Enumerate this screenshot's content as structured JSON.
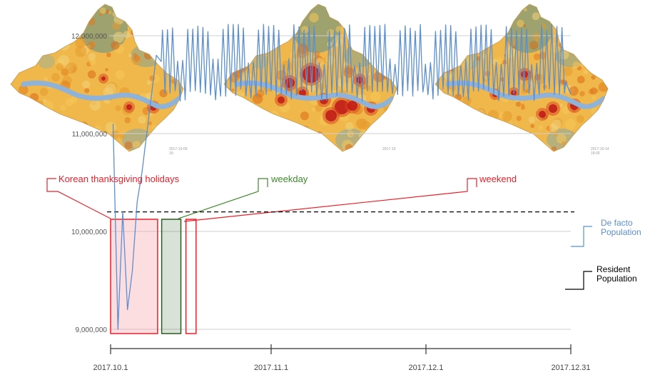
{
  "maps": [
    {
      "timestamp": "2017-10-06 16:"
    },
    {
      "timestamp": "2017-10"
    },
    {
      "timestamp": "2017-10-14 18:00"
    }
  ],
  "annotations": {
    "holiday": "Korean thanksgiving holidays",
    "weekday": "weekday",
    "weekend": "weekend"
  },
  "legend": {
    "defacto": [
      "De facto",
      "Population"
    ],
    "resident": [
      "Resident",
      "Population"
    ]
  },
  "colors": {
    "series": "#5b8fd0",
    "holiday": "#e8202a",
    "weekday": "#3e8a2c",
    "weekend": "#e8202a",
    "grid": "#cfcfcf"
  },
  "chart_data": {
    "type": "line",
    "xlabel": "",
    "ylabel": "",
    "x_ticks": [
      "2017.10.1",
      "2017.11.1",
      "2017.12.1",
      "2017.12.31"
    ],
    "y_ticks": [
      "9,000,000",
      "10,000,000",
      "11,000,000",
      "12,000,000"
    ],
    "ylim": [
      8800000,
      12300000
    ],
    "grid": true,
    "series": [
      {
        "name": "De facto Population",
        "x": [
          "2017.10.1",
          "2017.10.2",
          "2017.10.3",
          "2017.10.4",
          "2017.10.5",
          "2017.10.6",
          "2017.10.7",
          "2017.10.8",
          "2017.10.9",
          "2017.10.10",
          "2017.12.31"
        ],
        "values": [
          11100000,
          9000000,
          10200000,
          9200000,
          9600000,
          10300000,
          10600000,
          11000000,
          11400000,
          11800000,
          11400000
        ],
        "pattern": "daily oscillation between about 11,400,000 and 12,100,000 from 2017.10.10 to 2017.12.31"
      },
      {
        "name": "Resident Population",
        "values": [
          10200000
        ],
        "style": "dashed"
      }
    ],
    "highlights": [
      {
        "label": "Korean thanksgiving holidays",
        "from": "2017.10.1",
        "to": "2017.10.10"
      },
      {
        "label": "weekday",
        "from": "2017.10.11",
        "to": "2017.10.13"
      },
      {
        "label": "weekend",
        "from": "2017.10.14",
        "to": "2017.10.15"
      }
    ]
  }
}
